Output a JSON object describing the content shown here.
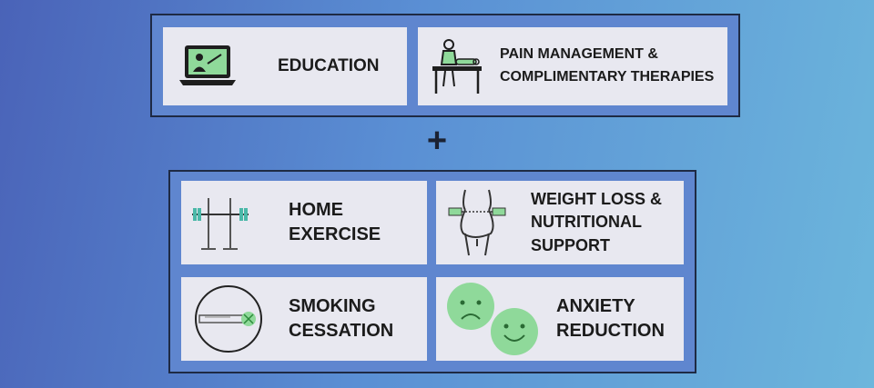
{
  "top_group": {
    "education": {
      "label": "EDUCATION",
      "icon": "laptop-video-icon"
    },
    "pain": {
      "line1": "PAIN MANAGEMENT &",
      "line2": "COMPLIMENTARY THERAPIES",
      "icon": "massage-table-icon"
    }
  },
  "connector": {
    "symbol": "+"
  },
  "bottom_group": {
    "exercise": {
      "line1": "HOME",
      "line2": "EXERCISE",
      "icon": "barbell-rack-icon"
    },
    "weight": {
      "line1": "WEIGHT LOSS &",
      "line2": "NUTRITIONAL",
      "line3": "SUPPORT",
      "icon": "waist-tape-measure-icon"
    },
    "smoking": {
      "line1": "SMOKING",
      "line2": "CESSATION",
      "icon": "no-smoking-icon"
    },
    "anxiety": {
      "line1": "ANXIETY",
      "line2": "REDUCTION",
      "icon": "sad-happy-faces-icon"
    }
  },
  "colors": {
    "accent_green": "#8fd99a",
    "card_bg": "#e8e8f0",
    "border": "#1e2a44"
  }
}
